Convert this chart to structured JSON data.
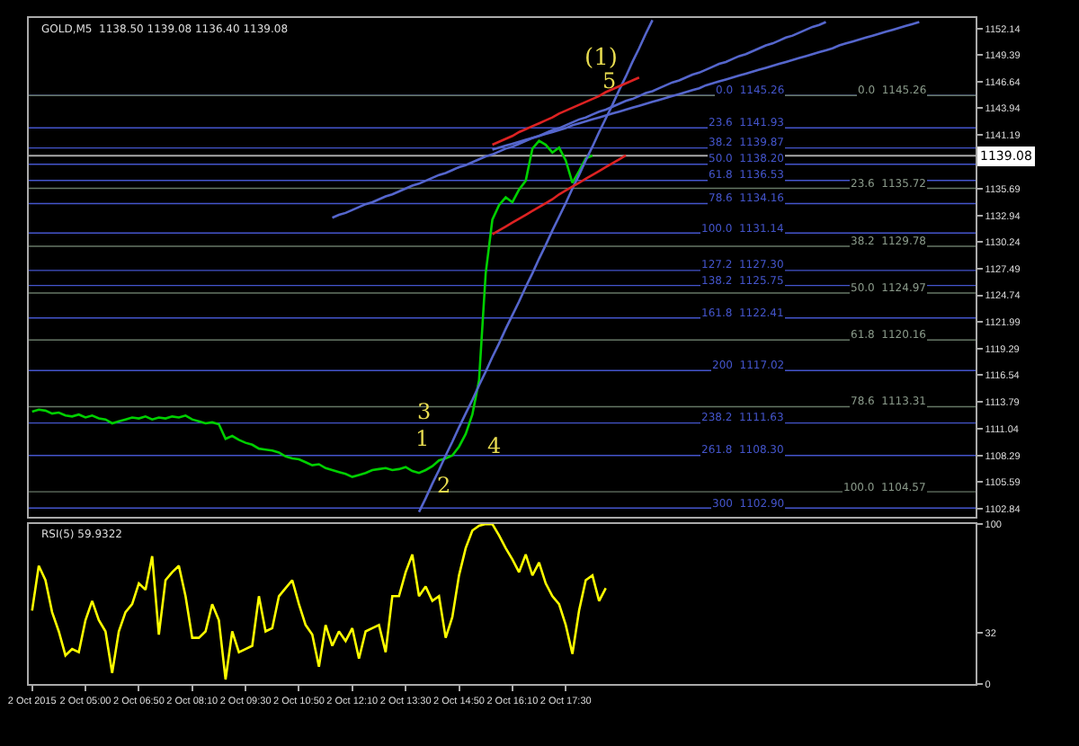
{
  "chart_data": [
    {
      "type": "line",
      "title": "GOLD,M5  1138.50 1139.08 1136.40 1139.08",
      "tick_labels": "y",
      "grid": false,
      "marker": "none",
      "categories": [
        null,
        null,
        null,
        null,
        null,
        null,
        null,
        null,
        null,
        null,
        null,
        null,
        null,
        null,
        null,
        null,
        null,
        null,
        null,
        null,
        null,
        null,
        null,
        null,
        null,
        null,
        null,
        null,
        null,
        null,
        null,
        null,
        null,
        null,
        null,
        null,
        null,
        null,
        null,
        null,
        null,
        null,
        null,
        null,
        null,
        null,
        null,
        null,
        null,
        null,
        null,
        null,
        null,
        null,
        null,
        null,
        null,
        null,
        null,
        null,
        null,
        null,
        null,
        null,
        null,
        null,
        null,
        null,
        null,
        null,
        null,
        null,
        null,
        null,
        null,
        null,
        null,
        null,
        null,
        null,
        null,
        null,
        null,
        null,
        null,
        null,
        null,
        null,
        null,
        null,
        null,
        null,
        null,
        null,
        null,
        null,
        null,
        null,
        null,
        null,
        null,
        null,
        null,
        null,
        null,
        null,
        null,
        null,
        null,
        null,
        null,
        null,
        null,
        null,
        null,
        null,
        null,
        null,
        null,
        null,
        null,
        null,
        null,
        null,
        null,
        null,
        null,
        null,
        null,
        null,
        null,
        null,
        null,
        null,
        null,
        null,
        null,
        null,
        null,
        null,
        null,
        null
      ],
      "ylim": [
        1102.0,
        1153.2
      ],
      "yticks": [
        1102.84,
        1105.59,
        1108.29,
        1111.04,
        1113.79,
        1116.54,
        1119.29,
        1121.99,
        1124.74,
        1127.49,
        1130.24,
        1132.94,
        1135.69,
        1141.19,
        1143.94,
        1146.64,
        1149.39,
        1152.14
      ],
      "series": [
        {
          "type": "line",
          "color": "#00d000",
          "values": [
            1112.8,
            1113.0,
            1112.9,
            1112.6,
            1112.7,
            1112.4,
            1112.3,
            1112.5,
            1112.2,
            1112.4,
            1112.1,
            1112.0,
            1111.6,
            1111.8,
            1112.0,
            1112.2,
            1112.1,
            1112.3,
            1112.0,
            1112.2,
            1112.1,
            1112.3,
            1112.2,
            1112.4,
            1112.0,
            1111.8,
            1111.6,
            1111.7,
            1111.5,
            1110.0,
            1110.3,
            1109.9,
            1109.6,
            1109.4,
            1109.0,
            1108.9,
            1108.8,
            1108.6,
            1108.2,
            1108.0,
            1107.9,
            1107.6,
            1107.3,
            1107.4,
            1107.0,
            1106.8,
            1106.6,
            1106.4,
            1106.1,
            1106.3,
            1106.5,
            1106.8,
            1106.9,
            1107.0,
            1106.8,
            1106.9,
            1107.1,
            1106.7,
            1106.5,
            1106.8,
            1107.2,
            1107.8,
            1108.0,
            1108.3,
            1109.2,
            1110.5,
            1112.5,
            1116.0,
            1127.0,
            1132.5,
            1134.0,
            1134.8,
            1134.3,
            1135.6,
            1136.5,
            1139.8,
            1140.6,
            1140.2,
            1139.4,
            1139.9,
            1138.6,
            1136.3,
            1137.5,
            1138.8,
            1139.1,
            null,
            null,
            null,
            null,
            null,
            null,
            null,
            null,
            null,
            null,
            null,
            null,
            null,
            null,
            null,
            null,
            null,
            null,
            null,
            null,
            null,
            null,
            null,
            null,
            null,
            null,
            null,
            null,
            null,
            null,
            null,
            null,
            null,
            null,
            null,
            null,
            null,
            null,
            null,
            null,
            null,
            null,
            null,
            null,
            null,
            null,
            null,
            null,
            null,
            null,
            null,
            null,
            null,
            null,
            null,
            null,
            null
          ]
        },
        {
          "type": "line",
          "color": "#5566cc",
          "values": [
            null,
            null,
            null,
            null,
            null,
            null,
            null,
            null,
            null,
            null,
            null,
            null,
            null,
            null,
            null,
            null,
            null,
            null,
            null,
            null,
            null,
            null,
            null,
            null,
            null,
            null,
            null,
            null,
            null,
            null,
            null,
            null,
            null,
            null,
            null,
            null,
            null,
            null,
            null,
            null,
            null,
            null,
            null,
            null,
            null,
            1132.7,
            1133.0,
            1133.2,
            1133.5,
            1133.8,
            1134.1,
            1134.3,
            1134.6,
            1134.9,
            1135.1,
            1135.4,
            1135.7,
            1136.0,
            1136.2,
            1136.5,
            1136.8,
            1137.1,
            1137.3,
            1137.6,
            1137.9,
            1138.1,
            1138.4,
            1138.7,
            1139.0,
            1139.2,
            1139.5,
            1139.8,
            1140.0,
            1140.3,
            1140.6,
            1140.9,
            1141.1,
            1141.4,
            1141.7,
            1141.9,
            1142.2,
            1142.5,
            1142.8,
            1143.0,
            1143.3,
            1143.6,
            1143.8,
            1144.1,
            1144.4,
            1144.7,
            1144.9,
            1145.2,
            1145.5,
            1145.7,
            1146.0,
            1146.3,
            1146.6,
            1146.8,
            1147.1,
            1147.4,
            1147.6,
            1147.9,
            1148.2,
            1148.5,
            1148.7,
            1149.0,
            1149.3,
            1149.5,
            1149.8,
            1150.1,
            1150.4,
            1150.6,
            1150.9,
            1151.2,
            1151.4,
            1151.7,
            1152.0,
            1152.3,
            1152.5,
            1152.8,
            null,
            null,
            null,
            null,
            null,
            null,
            null,
            null,
            null,
            null,
            null,
            null,
            null,
            null,
            null,
            null,
            null,
            null,
            null,
            null,
            null,
            null
          ]
        },
        {
          "type": "line",
          "color": "#5566cc",
          "values": [
            null,
            null,
            null,
            null,
            null,
            null,
            null,
            null,
            null,
            null,
            null,
            null,
            null,
            null,
            null,
            null,
            null,
            null,
            null,
            null,
            null,
            null,
            null,
            null,
            null,
            null,
            null,
            null,
            null,
            null,
            null,
            null,
            null,
            null,
            null,
            null,
            null,
            null,
            null,
            null,
            null,
            null,
            null,
            null,
            null,
            null,
            null,
            null,
            null,
            null,
            null,
            null,
            null,
            null,
            null,
            null,
            null,
            null,
            null,
            null,
            null,
            null,
            null,
            null,
            null,
            null,
            null,
            null,
            null,
            1139.7,
            1139.9,
            1140.1,
            1140.3,
            1140.5,
            1140.7,
            1140.9,
            1141.1,
            1141.3,
            1141.5,
            1141.7,
            1141.9,
            1142.2,
            1142.4,
            1142.6,
            1142.8,
            1143.0,
            1143.2,
            1143.4,
            1143.6,
            1143.8,
            1144.0,
            1144.2,
            1144.4,
            1144.6,
            1144.8,
            1145.0,
            1145.2,
            1145.4,
            1145.6,
            1145.8,
            1146.0,
            1146.3,
            1146.5,
            1146.7,
            1146.9,
            1147.1,
            1147.3,
            1147.5,
            1147.7,
            1147.9,
            1148.1,
            1148.3,
            1148.5,
            1148.7,
            1148.9,
            1149.1,
            1149.3,
            1149.5,
            1149.7,
            1149.9,
            1150.1,
            1150.4,
            1150.6,
            1150.8,
            1151.0,
            1151.2,
            1151.4,
            1151.6,
            1151.8,
            1152.0,
            1152.2,
            1152.4,
            1152.6,
            1152.8,
            null,
            null,
            null,
            null,
            null,
            null,
            null,
            null
          ]
        },
        {
          "type": "line",
          "color": "#5566cc",
          "values": [
            null,
            null,
            null,
            null,
            null,
            null,
            null,
            null,
            null,
            null,
            null,
            null,
            null,
            null,
            null,
            null,
            null,
            null,
            null,
            null,
            null,
            null,
            null,
            null,
            null,
            null,
            null,
            null,
            null,
            null,
            null,
            null,
            null,
            null,
            null,
            null,
            null,
            null,
            null,
            null,
            null,
            null,
            null,
            null,
            null,
            null,
            null,
            null,
            null,
            null,
            null,
            null,
            null,
            null,
            null,
            null,
            null,
            null,
            1102.5,
            1103.9,
            1105.4,
            1106.8,
            1108.3,
            1109.7,
            1111.2,
            1112.6,
            1114.0,
            1115.5,
            1116.9,
            1118.4,
            1119.8,
            1121.3,
            1122.7,
            1124.1,
            1125.6,
            1127.0,
            1128.5,
            1129.9,
            1131.4,
            1132.8,
            1134.2,
            1135.7,
            1137.1,
            1138.6,
            1140.0,
            1141.5,
            1142.9,
            1144.3,
            1145.8,
            1147.2,
            1148.7,
            1150.1,
            1151.6,
            1153.0,
            null,
            null,
            null,
            null,
            null,
            null,
            null,
            null,
            null,
            null,
            null,
            null,
            null,
            null,
            null,
            null,
            null,
            null,
            null,
            null,
            null,
            null,
            null,
            null,
            null,
            null,
            null,
            null,
            null,
            null,
            null,
            null,
            null,
            null,
            null,
            null,
            null,
            null,
            null,
            null,
            null,
            null,
            null,
            null,
            null,
            null,
            null,
            null
          ]
        },
        {
          "type": "line",
          "color": "#dd2222",
          "values": [
            null,
            null,
            null,
            null,
            null,
            null,
            null,
            null,
            null,
            null,
            null,
            null,
            null,
            null,
            null,
            null,
            null,
            null,
            null,
            null,
            null,
            null,
            null,
            null,
            null,
            null,
            null,
            null,
            null,
            null,
            null,
            null,
            null,
            null,
            null,
            null,
            null,
            null,
            null,
            null,
            null,
            null,
            null,
            null,
            null,
            null,
            null,
            null,
            null,
            null,
            null,
            null,
            null,
            null,
            null,
            null,
            null,
            null,
            null,
            null,
            null,
            null,
            null,
            null,
            null,
            null,
            null,
            null,
            null,
            1140.2,
            1140.5,
            1140.8,
            1141.1,
            1141.5,
            1141.8,
            1142.1,
            1142.4,
            1142.7,
            1143.0,
            1143.4,
            1143.7,
            1144.0,
            1144.3,
            1144.6,
            1144.9,
            1145.2,
            1145.6,
            1145.9,
            1146.2,
            1146.5,
            1146.8,
            1147.1,
            null,
            null,
            null,
            null,
            null,
            null,
            null,
            null,
            null,
            null,
            null,
            null,
            null,
            null,
            null,
            null,
            null,
            null,
            null,
            null,
            null,
            null,
            null,
            null,
            null,
            null,
            null,
            null,
            null,
            null,
            null,
            null,
            null,
            null,
            null,
            null,
            null,
            null,
            null,
            null,
            null,
            null,
            null,
            null,
            null,
            null,
            null,
            null,
            null,
            null
          ]
        },
        {
          "type": "line",
          "color": "#dd2222",
          "values": [
            null,
            null,
            null,
            null,
            null,
            null,
            null,
            null,
            null,
            null,
            null,
            null,
            null,
            null,
            null,
            null,
            null,
            null,
            null,
            null,
            null,
            null,
            null,
            null,
            null,
            null,
            null,
            null,
            null,
            null,
            null,
            null,
            null,
            null,
            null,
            null,
            null,
            null,
            null,
            null,
            null,
            null,
            null,
            null,
            null,
            null,
            null,
            null,
            null,
            null,
            null,
            null,
            null,
            null,
            null,
            null,
            null,
            null,
            null,
            null,
            null,
            null,
            null,
            null,
            null,
            null,
            null,
            null,
            null,
            1131.0,
            1131.4,
            1131.8,
            1132.2,
            1132.6,
            1133.0,
            1133.4,
            1133.8,
            1134.2,
            1134.6,
            1135.1,
            1135.5,
            1135.9,
            1136.3,
            1136.7,
            1137.1,
            1137.5,
            1137.9,
            1138.3,
            1138.7,
            1139.1,
            null,
            null,
            null,
            null,
            null,
            null,
            null,
            null,
            null,
            null,
            null,
            null,
            null,
            null,
            null,
            null,
            null,
            null,
            null,
            null,
            null,
            null,
            null,
            null,
            null,
            null,
            null,
            null,
            null,
            null,
            null,
            null,
            null,
            null,
            null,
            null,
            null,
            null,
            null,
            null,
            null,
            null,
            null,
            null,
            null,
            null,
            null,
            null,
            null,
            null,
            null,
            null
          ]
        }
      ],
      "ref_lines": [
        {
          "axis": "y",
          "value": 1139.08,
          "label": "1139.08",
          "color": "#aaaaaa"
        },
        {
          "axis": "y",
          "value": 1145.26,
          "label": "0.0  1145.26",
          "color": "#4455cc"
        },
        {
          "axis": "y",
          "value": 1141.93,
          "label": "23.6  1141.93",
          "color": "#4455cc"
        },
        {
          "axis": "y",
          "value": 1139.87,
          "label": "38.2  1139.87",
          "color": "#4455cc"
        },
        {
          "axis": "y",
          "value": 1138.2,
          "label": "50.0  1138.20",
          "color": "#4455cc"
        },
        {
          "axis": "y",
          "value": 1136.53,
          "label": "61.8  1136.53",
          "color": "#4455cc"
        },
        {
          "axis": "y",
          "value": 1134.16,
          "label": "78.6  1134.16",
          "color": "#4455cc"
        },
        {
          "axis": "y",
          "value": 1131.14,
          "label": "100.0  1131.14",
          "color": "#4455cc"
        },
        {
          "axis": "y",
          "value": 1127.3,
          "label": "127.2  1127.30",
          "color": "#4455cc"
        },
        {
          "axis": "y",
          "value": 1125.75,
          "label": "138.2  1125.75",
          "color": "#4455cc"
        },
        {
          "axis": "y",
          "value": 1122.41,
          "label": "161.8  1122.41",
          "color": "#4455cc"
        },
        {
          "axis": "y",
          "value": 1117.02,
          "label": "200  1117.02",
          "color": "#4455cc"
        },
        {
          "axis": "y",
          "value": 1111.63,
          "label": "238.2  1111.63",
          "color": "#4455cc"
        },
        {
          "axis": "y",
          "value": 1108.3,
          "label": "261.8  1108.30",
          "color": "#4455cc"
        },
        {
          "axis": "y",
          "value": 1102.9,
          "label": "300  1102.90",
          "color": "#4455cc"
        },
        {
          "axis": "y",
          "value": 1145.26,
          "label": "0.0  1145.26",
          "color": "#667766"
        },
        {
          "axis": "y",
          "value": 1135.72,
          "label": "23.6  1135.72",
          "color": "#667766"
        },
        {
          "axis": "y",
          "value": 1129.78,
          "label": "38.2  1129.78",
          "color": "#667766"
        },
        {
          "axis": "y",
          "value": 1124.97,
          "label": "50.0  1124.97",
          "color": "#667766"
        },
        {
          "axis": "y",
          "value": 1120.16,
          "label": "61.8  1120.16",
          "color": "#667766"
        },
        {
          "axis": "y",
          "value": 1113.31,
          "label": "78.6  1113.31",
          "color": "#667766"
        },
        {
          "axis": "y",
          "value": 1104.57,
          "label": "100.0  1104.57",
          "color": "#667766"
        }
      ],
      "annotations": [
        "(1)",
        "5",
        "1",
        "2",
        "3",
        "4"
      ]
    },
    {
      "type": "line",
      "title": "RSI(5) 59.9322",
      "grid": false,
      "marker": "none",
      "categories": [
        "2 Oct 2015",
        null,
        null,
        null,
        null,
        null,
        null,
        null,
        "2 Oct 05:00",
        null,
        null,
        null,
        null,
        null,
        null,
        null,
        "2 Oct 06:50",
        null,
        null,
        null,
        null,
        null,
        null,
        null,
        "2 Oct 08:10",
        null,
        null,
        null,
        null,
        null,
        null,
        null,
        "2 Oct 09:30",
        null,
        null,
        null,
        null,
        null,
        null,
        null,
        "2 Oct 10:50",
        null,
        null,
        null,
        null,
        null,
        null,
        null,
        "2 Oct 12:10",
        null,
        null,
        null,
        null,
        null,
        null,
        null,
        "2 Oct 13:30",
        null,
        null,
        null,
        null,
        null,
        null,
        null,
        "2 Oct 14:50",
        null,
        null,
        null,
        null,
        null,
        null,
        null,
        "2 Oct 16:10",
        null,
        null,
        null,
        null,
        null,
        null,
        null,
        "2 Oct 17:30",
        null,
        null,
        null,
        null,
        null,
        null,
        null,
        null,
        null,
        null,
        null,
        null,
        null,
        null,
        null,
        null,
        null,
        null,
        null,
        null,
        null,
        null,
        null,
        null,
        null,
        null,
        null,
        null,
        null,
        null,
        null,
        null,
        null,
        null,
        null,
        null,
        null,
        null,
        null,
        null,
        null,
        null,
        null,
        null,
        null,
        null,
        null,
        null,
        null,
        null,
        null,
        null,
        null,
        null,
        null,
        null,
        null,
        null,
        null,
        null,
        null
      ],
      "ylim": [
        0,
        100
      ],
      "yticks": [
        0,
        32,
        100
      ],
      "series": [
        {
          "type": "line",
          "color": "#ffff00",
          "values": [
            46,
            74,
            65,
            45,
            33,
            18,
            22,
            20,
            40,
            52,
            40,
            33,
            7,
            33,
            45,
            50,
            63,
            59,
            80,
            31,
            65,
            70,
            74,
            55,
            29,
            29,
            33,
            50,
            40,
            3,
            33,
            20,
            22,
            24,
            55,
            33,
            35,
            55,
            60,
            65,
            50,
            37,
            31,
            11,
            37,
            24,
            33,
            27,
            35,
            16,
            33,
            35,
            37,
            20,
            55,
            55,
            70,
            81,
            55,
            61,
            52,
            55,
            29,
            42,
            68,
            85,
            96,
            99,
            100,
            100,
            93,
            85,
            78,
            70,
            81,
            68,
            76,
            63,
            55,
            50,
            37,
            19,
            46,
            65,
            68,
            52,
            60,
            null,
            null,
            null,
            null,
            null,
            null,
            null,
            null,
            null,
            null,
            null,
            null,
            null,
            null,
            null,
            null,
            null,
            null,
            null,
            null,
            null,
            null,
            null,
            null,
            null,
            null,
            null,
            null,
            null,
            null,
            null,
            null,
            null,
            null,
            null,
            null,
            null,
            null,
            null,
            null,
            null,
            null,
            null,
            null,
            null,
            null,
            null,
            null,
            null,
            null,
            null,
            null,
            null,
            null,
            null
          ]
        }
      ]
    }
  ]
}
